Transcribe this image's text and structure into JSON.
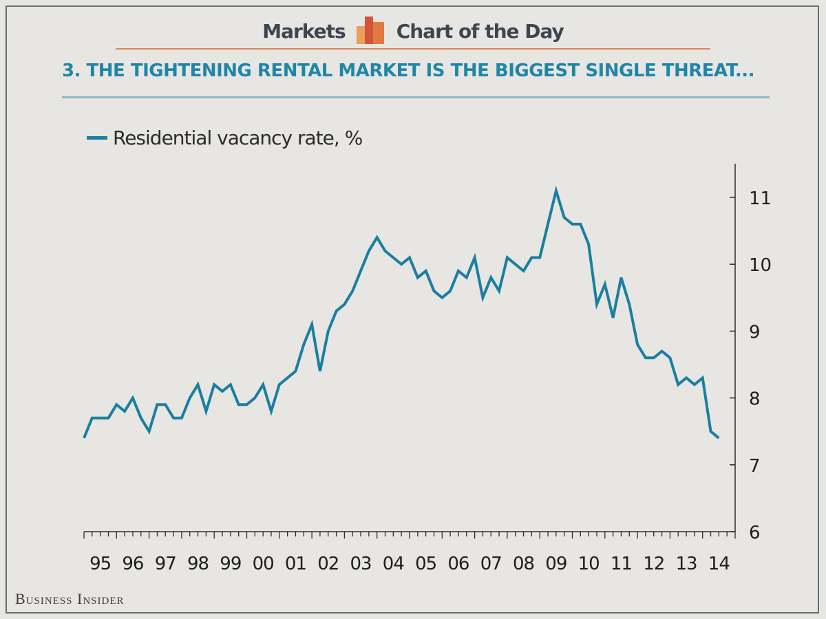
{
  "header": {
    "left_text": "Markets",
    "right_text": "Chart of the Day",
    "logo_icon": "bar-chart-logo-icon"
  },
  "title": "3. THE TIGHTENING RENTAL MARKET IS THE BIGGEST SINGLE THREAT...",
  "footer": {
    "brand": "Business Insider"
  },
  "colors": {
    "line": "#1a7fa0",
    "title": "#1f86a8",
    "accent": "#d9875a"
  },
  "chart_data": {
    "type": "line",
    "title": "",
    "xlabel": "",
    "ylabel": "",
    "y_axis_position": "right",
    "legend_position": "top-left",
    "grid": false,
    "ylim": [
      6,
      11.5
    ],
    "yticks": [
      "6",
      "7",
      "8",
      "9",
      "10",
      "11"
    ],
    "xlim": [
      1995.0,
      2015.0
    ],
    "xticks": [
      "95",
      "96",
      "97",
      "98",
      "99",
      "00",
      "01",
      "02",
      "03",
      "04",
      "05",
      "06",
      "07",
      "08",
      "09",
      "10",
      "11",
      "12",
      "13",
      "14"
    ],
    "series": [
      {
        "name": "Residential vacancy rate, %",
        "values": [
          {
            "x": 1995.0,
            "y": 7.4
          },
          {
            "x": 1995.25,
            "y": 7.7
          },
          {
            "x": 1995.5,
            "y": 7.7
          },
          {
            "x": 1995.75,
            "y": 7.7
          },
          {
            "x": 1996.0,
            "y": 7.9
          },
          {
            "x": 1996.25,
            "y": 7.8
          },
          {
            "x": 1996.5,
            "y": 8.0
          },
          {
            "x": 1996.75,
            "y": 7.7
          },
          {
            "x": 1997.0,
            "y": 7.5
          },
          {
            "x": 1997.25,
            "y": 7.9
          },
          {
            "x": 1997.5,
            "y": 7.9
          },
          {
            "x": 1997.75,
            "y": 7.7
          },
          {
            "x": 1998.0,
            "y": 7.7
          },
          {
            "x": 1998.25,
            "y": 8.0
          },
          {
            "x": 1998.5,
            "y": 8.2
          },
          {
            "x": 1998.75,
            "y": 7.8
          },
          {
            "x": 1999.0,
            "y": 8.2
          },
          {
            "x": 1999.25,
            "y": 8.1
          },
          {
            "x": 1999.5,
            "y": 8.2
          },
          {
            "x": 1999.75,
            "y": 7.9
          },
          {
            "x": 2000.0,
            "y": 7.9
          },
          {
            "x": 2000.25,
            "y": 8.0
          },
          {
            "x": 2000.5,
            "y": 8.2
          },
          {
            "x": 2000.75,
            "y": 7.8
          },
          {
            "x": 2001.0,
            "y": 8.2
          },
          {
            "x": 2001.25,
            "y": 8.3
          },
          {
            "x": 2001.5,
            "y": 8.4
          },
          {
            "x": 2001.75,
            "y": 8.8
          },
          {
            "x": 2002.0,
            "y": 9.1
          },
          {
            "x": 2002.25,
            "y": 8.4
          },
          {
            "x": 2002.5,
            "y": 9.0
          },
          {
            "x": 2002.75,
            "y": 9.3
          },
          {
            "x": 2003.0,
            "y": 9.4
          },
          {
            "x": 2003.25,
            "y": 9.6
          },
          {
            "x": 2003.5,
            "y": 9.9
          },
          {
            "x": 2003.75,
            "y": 10.2
          },
          {
            "x": 2004.0,
            "y": 10.4
          },
          {
            "x": 2004.25,
            "y": 10.2
          },
          {
            "x": 2004.5,
            "y": 10.1
          },
          {
            "x": 2004.75,
            "y": 10.0
          },
          {
            "x": 2005.0,
            "y": 10.1
          },
          {
            "x": 2005.25,
            "y": 9.8
          },
          {
            "x": 2005.5,
            "y": 9.9
          },
          {
            "x": 2005.75,
            "y": 9.6
          },
          {
            "x": 2006.0,
            "y": 9.5
          },
          {
            "x": 2006.25,
            "y": 9.6
          },
          {
            "x": 2006.5,
            "y": 9.9
          },
          {
            "x": 2006.75,
            "y": 9.8
          },
          {
            "x": 2007.0,
            "y": 10.1
          },
          {
            "x": 2007.25,
            "y": 9.5
          },
          {
            "x": 2007.5,
            "y": 9.8
          },
          {
            "x": 2007.75,
            "y": 9.6
          },
          {
            "x": 2008.0,
            "y": 10.1
          },
          {
            "x": 2008.25,
            "y": 10.0
          },
          {
            "x": 2008.5,
            "y": 9.9
          },
          {
            "x": 2008.75,
            "y": 10.1
          },
          {
            "x": 2009.0,
            "y": 10.1
          },
          {
            "x": 2009.25,
            "y": 10.6
          },
          {
            "x": 2009.5,
            "y": 11.1
          },
          {
            "x": 2009.75,
            "y": 10.7
          },
          {
            "x": 2010.0,
            "y": 10.6
          },
          {
            "x": 2010.25,
            "y": 10.6
          },
          {
            "x": 2010.5,
            "y": 10.3
          },
          {
            "x": 2010.75,
            "y": 9.4
          },
          {
            "x": 2011.0,
            "y": 9.7
          },
          {
            "x": 2011.25,
            "y": 9.2
          },
          {
            "x": 2011.5,
            "y": 9.8
          },
          {
            "x": 2011.75,
            "y": 9.4
          },
          {
            "x": 2012.0,
            "y": 8.8
          },
          {
            "x": 2012.25,
            "y": 8.6
          },
          {
            "x": 2012.5,
            "y": 8.6
          },
          {
            "x": 2012.75,
            "y": 8.7
          },
          {
            "x": 2013.0,
            "y": 8.6
          },
          {
            "x": 2013.25,
            "y": 8.2
          },
          {
            "x": 2013.5,
            "y": 8.3
          },
          {
            "x": 2013.75,
            "y": 8.2
          },
          {
            "x": 2014.0,
            "y": 8.3
          },
          {
            "x": 2014.25,
            "y": 7.5
          },
          {
            "x": 2014.5,
            "y": 7.4
          }
        ]
      }
    ]
  }
}
